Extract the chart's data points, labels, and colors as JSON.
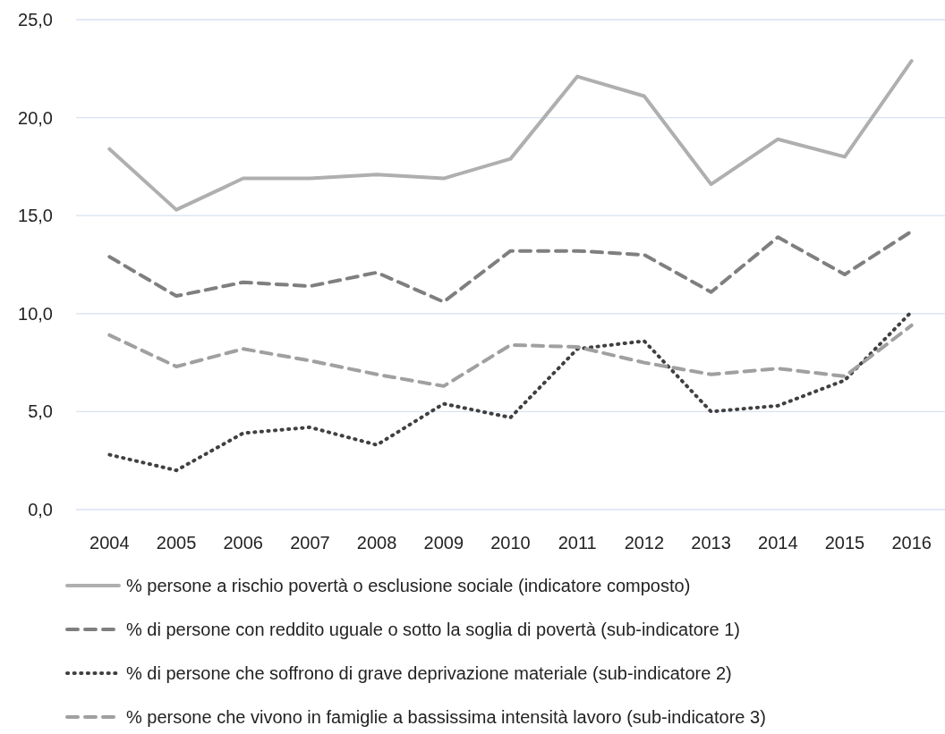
{
  "chart_data": {
    "type": "line",
    "categories": [
      "2004",
      "2005",
      "2006",
      "2007",
      "2008",
      "2009",
      "2010",
      "2011",
      "2012",
      "2013",
      "2014",
      "2015",
      "2016"
    ],
    "series": [
      {
        "name": "% persone a rischio povertà o esclusione sociale (indicatore composto)",
        "color": "#afafaf",
        "line_style": "solid",
        "values": [
          18.4,
          15.3,
          16.9,
          16.9,
          17.1,
          16.9,
          17.9,
          22.1,
          21.1,
          16.6,
          18.9,
          18.0,
          22.9
        ]
      },
      {
        "name": "% di persone con reddito uguale o sotto la soglia di povertà (sub-indicatore 1)",
        "color": "#7f7f7f",
        "line_style": "dashed",
        "values": [
          12.9,
          10.9,
          11.6,
          11.4,
          12.1,
          10.6,
          13.2,
          13.2,
          13.0,
          11.1,
          13.9,
          12.0,
          14.2
        ]
      },
      {
        "name": "% di persone che soffrono di grave deprivazione materiale (sub-indicatore 2)",
        "color": "#404040",
        "line_style": "dotted",
        "values": [
          2.8,
          2.0,
          3.9,
          4.2,
          3.3,
          5.4,
          4.7,
          8.2,
          8.6,
          5.0,
          5.3,
          6.6,
          10.1
        ]
      },
      {
        "name": "% persone che vivono in famiglie a bassissima intensità lavoro (sub-indicatore 3)",
        "color": "#a0a0a0",
        "line_style": "dashed",
        "values": [
          8.9,
          7.3,
          8.2,
          7.6,
          6.9,
          6.3,
          8.4,
          8.3,
          7.5,
          6.9,
          7.2,
          6.8,
          9.4
        ]
      }
    ],
    "ylim": [
      0,
      25
    ],
    "yticks": [
      {
        "value": 0,
        "label": "0,0"
      },
      {
        "value": 5,
        "label": "5,0"
      },
      {
        "value": 10,
        "label": "10,0"
      },
      {
        "value": 15,
        "label": "15,0"
      },
      {
        "value": 20,
        "label": "20,0"
      },
      {
        "value": 25,
        "label": "25,0"
      }
    ],
    "grid": "y",
    "legend": "bottom",
    "marker": "none"
  }
}
